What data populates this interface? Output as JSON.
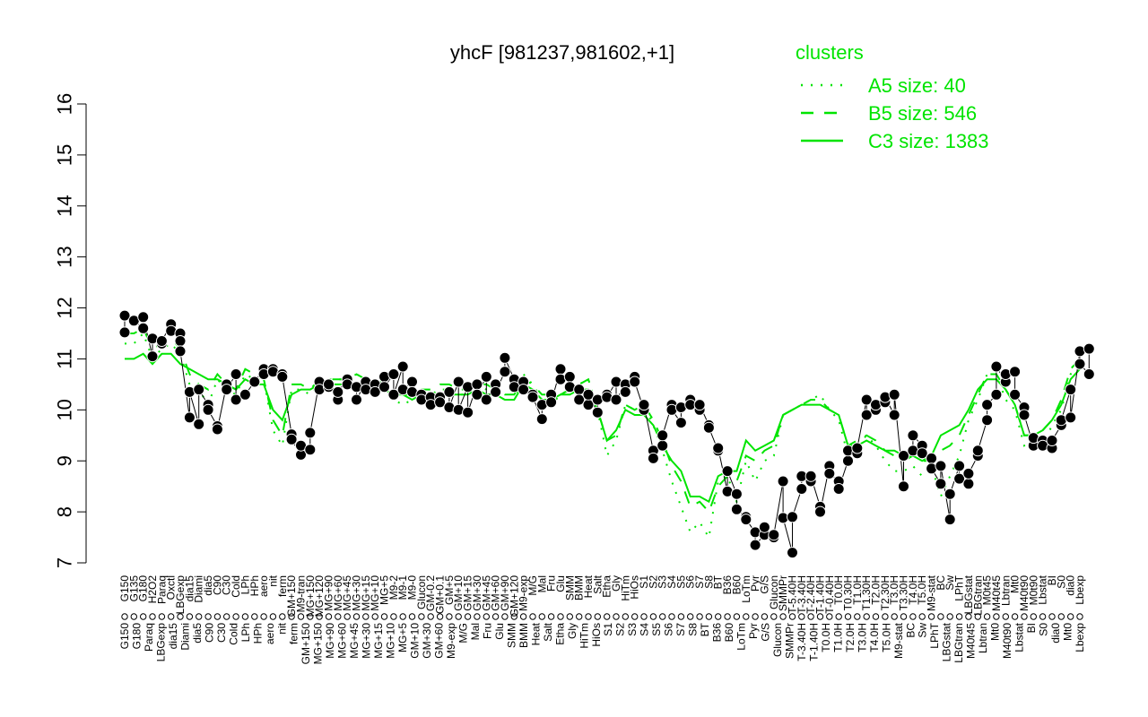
{
  "chart_data": {
    "type": "line",
    "title": "yhcF [981237,981602,+1]",
    "xlabel": "",
    "ylabel": "",
    "ylim": [
      7,
      16
    ],
    "yticks": [
      7,
      8,
      9,
      10,
      11,
      12,
      13,
      14,
      15,
      16
    ],
    "grid": false,
    "legend": {
      "placement": "top-right",
      "title": "clusters",
      "entries": [
        {
          "label": "A5 size: 40",
          "style": "dotted"
        },
        {
          "label": "B5 size: 546",
          "style": "dashed"
        },
        {
          "label": "C3 size: 1383",
          "style": "solid"
        }
      ]
    },
    "x_labels_top": [
      "G150",
      "G135",
      "G180",
      "H2O2",
      "Paraq",
      "Oxctl",
      "LBGexp",
      "dia15",
      "Diami",
      "dia5",
      "C90",
      "C30",
      "Cold",
      "LPh",
      "HPh",
      "aero",
      "nit",
      "ferm",
      "GM+150",
      "M9-tran",
      "MG+150",
      "MG+120",
      "MG+90",
      "MG+60",
      "MG+45",
      "MG+30",
      "MG+15",
      "MG+10",
      "MG+5",
      "M9-2",
      "M9-1",
      "M9-0",
      "Glucon",
      "GM-0.2",
      "GM+0.1",
      "GM+5",
      "GM+10",
      "GM+15",
      "GM+30",
      "GM+45",
      "GM+60",
      "GM+90",
      "GM+120",
      "M9-exp",
      "M/G",
      "Mal",
      "Fru",
      "Glu",
      "SMM",
      "BMM",
      "Heat",
      "Salt",
      "Etha",
      "Gly",
      "HiTm",
      "HiOs",
      "S1",
      "S2",
      "S3",
      "S4",
      "S5",
      "S6",
      "S7",
      "S8",
      "BT",
      "B36",
      "B60",
      "LoTm",
      "Pyr",
      "G/S",
      "Glucon",
      "SMMPr",
      "T-5.40H",
      "T-3.40H",
      "T-2.40H",
      "T-1.40H",
      "T-0.40H",
      "T0.0H",
      "T0.30H",
      "T1.0H",
      "T1.30H",
      "T2.0H",
      "T2.30H",
      "T3.0H",
      "T3.30H",
      "T4.0H",
      "T5.0H",
      "M9-stat",
      "BC",
      "Sw",
      "LPhT",
      "LBGstat",
      "LBGtran",
      "M0t45",
      "M40t45",
      "Lbtran",
      "Mt0",
      "M40t90",
      "M0t90",
      "Lbstat",
      "BI",
      "S0",
      "dia0",
      "Lbexp"
    ],
    "x_labels_bottom": [
      "G150",
      "G180",
      "Paraq",
      "LBGexp",
      "dia15",
      "Diami",
      "dia5",
      "C90",
      "C30",
      "Cold",
      "LPh",
      "HPh",
      "aero",
      "nit",
      "ferm",
      "GM+150",
      "MG+150",
      "MG+90",
      "MG+60",
      "MG+45",
      "MG+30",
      "MG+15",
      "MG+10",
      "MG+5",
      "GM+10",
      "GM+30",
      "GM+60",
      "M9-exp",
      "M/G",
      "Mal",
      "Fru",
      "Glu",
      "SMM",
      "BMM",
      "Heat",
      "Salt",
      "Etha",
      "Gly",
      "HiTm",
      "HiOs",
      "S1",
      "S2",
      "S3",
      "S4",
      "S5",
      "S6",
      "S7",
      "S8",
      "BT",
      "B36",
      "B60",
      "LoTm",
      "Pyr",
      "G/S",
      "Glucon",
      "SMMPr",
      "T-3.40H",
      "T-1.40H",
      "T0.0H",
      "T1.0H",
      "T2.0H",
      "T3.0H",
      "T4.0H",
      "T5.0H",
      "M9-stat",
      "BC",
      "Sw",
      "LPhT",
      "LBGstat",
      "LBGtran",
      "M40t45",
      "Lbtran",
      "Mt0",
      "M40t90",
      "Lbstat",
      "BI",
      "S0",
      "dia0",
      "Mt0",
      "Lbexp"
    ],
    "series": [
      {
        "name": "A5 size: 40",
        "style": "dotted",
        "color": "#00e400",
        "values": [
          11.3,
          11.3,
          11.5,
          11.0,
          11.2,
          11.3,
          11.1,
          10.5,
          10.4,
          10.1,
          10.6,
          10.4,
          10.3,
          10.7,
          10.6,
          10.6,
          9.6,
          9.3,
          10.4,
          10.4,
          10.3,
          10.5,
          10.6,
          10.6,
          10.6,
          10.7,
          10.6,
          10.5,
          10.4,
          10.2,
          10.1,
          10.2,
          10.3,
          10.3,
          10.4,
          10.4,
          10.3,
          10.3,
          10.5,
          10.4,
          10.3,
          10.2,
          10.2,
          10.7,
          10.5,
          10.2,
          10.1,
          10.3,
          10.4,
          10.5,
          10.6,
          10.0,
          9.1,
          9.4,
          10.1,
          10.0,
          10.1,
          9.7,
          9.2,
          8.6,
          8.1,
          7.6,
          7.8,
          7.5,
          8.6,
          8.7,
          8.2,
          9.0,
          8.6,
          9.0,
          9.1,
          9.9,
          10.0,
          10.1,
          10.2,
          10.3,
          10.0,
          9.8,
          9.1,
          9.3,
          9.5,
          9.3,
          9.0,
          8.8,
          8.8,
          8.9,
          8.7,
          8.9,
          8.3,
          8.7,
          9.1,
          9.8,
          10.2,
          10.7,
          10.7,
          10.2,
          10.0,
          9.3,
          9.4,
          9.3,
          9.7,
          10.0,
          10.7,
          10.9
        ]
      },
      {
        "name": "B5 size: 546",
        "style": "dashed",
        "color": "#00e400",
        "values": [
          11.5,
          11.5,
          11.6,
          11.2,
          11.3,
          11.4,
          11.2,
          10.7,
          10.5,
          10.4,
          10.7,
          10.5,
          10.4,
          10.8,
          10.7,
          10.6,
          9.8,
          9.5,
          10.5,
          10.5,
          10.4,
          10.6,
          10.6,
          10.6,
          10.6,
          10.7,
          10.6,
          10.6,
          10.5,
          10.4,
          10.3,
          10.3,
          10.4,
          10.4,
          10.5,
          10.5,
          10.4,
          10.4,
          10.5,
          10.5,
          10.4,
          10.3,
          10.3,
          10.6,
          10.5,
          10.3,
          10.3,
          10.3,
          10.4,
          10.5,
          10.6,
          10.0,
          9.4,
          9.5,
          10.1,
          10.0,
          10.1,
          9.8,
          9.4,
          8.9,
          8.6,
          8.1,
          8.2,
          8.0,
          8.5,
          8.7,
          8.6,
          9.1,
          9.0,
          9.2,
          9.3,
          9.9,
          10.0,
          10.1,
          10.2,
          10.2,
          10.0,
          9.9,
          9.3,
          9.4,
          9.5,
          9.4,
          9.2,
          9.1,
          9.0,
          9.1,
          9.0,
          9.0,
          9.2,
          9.3,
          9.5,
          9.9,
          10.3,
          10.7,
          10.7,
          10.4,
          10.1,
          9.5,
          9.5,
          9.6,
          9.8,
          10.2,
          10.8,
          11.0
        ]
      },
      {
        "name": "C3 size: 1383",
        "style": "solid",
        "color": "#00e400",
        "values": [
          11.0,
          11.0,
          11.1,
          10.9,
          11.1,
          11.1,
          10.9,
          10.8,
          10.7,
          10.6,
          10.6,
          10.5,
          10.4,
          10.6,
          10.5,
          10.5,
          10.0,
          9.8,
          10.3,
          10.4,
          10.4,
          10.5,
          10.5,
          10.5,
          10.5,
          10.5,
          10.5,
          10.4,
          10.4,
          10.3,
          10.3,
          10.2,
          10.3,
          10.3,
          10.3,
          10.3,
          10.3,
          10.3,
          10.4,
          10.3,
          10.3,
          10.2,
          10.2,
          10.5,
          10.4,
          10.2,
          10.2,
          10.3,
          10.3,
          10.4,
          10.4,
          10.0,
          9.4,
          9.6,
          10.0,
          9.9,
          9.9,
          9.7,
          9.3,
          9.0,
          8.8,
          8.3,
          8.3,
          8.2,
          8.7,
          8.8,
          8.8,
          9.4,
          9.2,
          9.3,
          9.4,
          9.9,
          10.0,
          10.1,
          10.1,
          10.1,
          10.0,
          9.9,
          9.3,
          9.3,
          9.4,
          9.3,
          9.2,
          9.2,
          9.1,
          9.1,
          9.0,
          9.1,
          9.5,
          9.6,
          9.7,
          10.0,
          10.4,
          10.6,
          10.6,
          10.4,
          10.1,
          9.5,
          9.5,
          9.6,
          9.8,
          10.1,
          10.6,
          10.8
        ]
      }
    ],
    "points": [
      [
        0,
        11.52
      ],
      [
        0,
        11.85
      ],
      [
        1,
        11.75
      ],
      [
        2,
        11.6
      ],
      [
        2,
        11.82
      ],
      [
        3,
        11.05
      ],
      [
        3,
        11.4
      ],
      [
        4,
        11.3
      ],
      [
        4,
        11.35
      ],
      [
        5,
        11.68
      ],
      [
        5,
        11.55
      ],
      [
        6,
        11.5
      ],
      [
        6,
        11.35
      ],
      [
        6,
        11.15
      ],
      [
        7,
        9.85
      ],
      [
        7,
        10.35
      ],
      [
        8,
        9.72
      ],
      [
        8,
        10.4
      ],
      [
        9,
        10.1
      ],
      [
        9,
        10.0
      ],
      [
        10,
        9.68
      ],
      [
        10,
        9.62
      ],
      [
        11,
        10.5
      ],
      [
        11,
        10.4
      ],
      [
        12,
        10.7
      ],
      [
        12,
        10.2
      ],
      [
        13,
        10.3
      ],
      [
        14,
        10.55
      ],
      [
        15,
        10.8
      ],
      [
        15,
        10.7
      ],
      [
        16,
        10.8
      ],
      [
        16,
        10.75
      ],
      [
        17,
        10.7
      ],
      [
        17,
        10.65
      ],
      [
        18,
        9.52
      ],
      [
        18,
        9.42
      ],
      [
        19,
        9.12
      ],
      [
        19,
        9.3
      ],
      [
        20,
        9.22
      ],
      [
        20,
        9.55
      ],
      [
        21,
        10.55
      ],
      [
        21,
        10.4
      ],
      [
        22,
        10.45
      ],
      [
        22,
        10.5
      ],
      [
        23,
        10.2
      ],
      [
        23,
        10.35
      ],
      [
        24,
        10.6
      ],
      [
        24,
        10.5
      ],
      [
        25,
        10.45
      ],
      [
        25,
        10.2
      ],
      [
        26,
        10.55
      ],
      [
        26,
        10.4
      ],
      [
        27,
        10.5
      ],
      [
        27,
        10.35
      ],
      [
        28,
        10.65
      ],
      [
        28,
        10.45
      ],
      [
        29,
        10.7
      ],
      [
        29,
        10.3
      ],
      [
        30,
        10.85
      ],
      [
        30,
        10.4
      ],
      [
        31,
        10.55
      ],
      [
        31,
        10.35
      ],
      [
        32,
        10.3
      ],
      [
        32,
        10.2
      ],
      [
        33,
        10.25
      ],
      [
        33,
        10.1
      ],
      [
        34,
        10.25
      ],
      [
        34,
        10.15
      ],
      [
        35,
        10.35
      ],
      [
        35,
        10.05
      ],
      [
        36,
        10.55
      ],
      [
        36,
        10.0
      ],
      [
        37,
        10.45
      ],
      [
        37,
        9.95
      ],
      [
        38,
        10.5
      ],
      [
        38,
        10.3
      ],
      [
        39,
        10.65
      ],
      [
        39,
        10.2
      ],
      [
        40,
        10.5
      ],
      [
        40,
        10.35
      ],
      [
        41,
        10.75
      ],
      [
        41,
        11.02
      ],
      [
        42,
        10.6
      ],
      [
        42,
        10.45
      ],
      [
        43,
        10.55
      ],
      [
        43,
        10.4
      ],
      [
        44,
        10.3
      ],
      [
        44,
        10.25
      ],
      [
        45,
        9.82
      ],
      [
        45,
        10.1
      ],
      [
        46,
        10.3
      ],
      [
        46,
        10.15
      ],
      [
        47,
        10.8
      ],
      [
        47,
        10.6
      ],
      [
        48,
        10.65
      ],
      [
        48,
        10.45
      ],
      [
        49,
        10.4
      ],
      [
        49,
        10.2
      ],
      [
        50,
        10.1
      ],
      [
        50,
        10.3
      ],
      [
        51,
        9.95
      ],
      [
        51,
        10.2
      ],
      [
        52,
        10.3
      ],
      [
        52,
        10.25
      ],
      [
        53,
        10.55
      ],
      [
        53,
        10.2
      ],
      [
        54,
        10.5
      ],
      [
        54,
        10.35
      ],
      [
        55,
        10.65
      ],
      [
        55,
        10.55
      ],
      [
        56,
        10.0
      ],
      [
        56,
        10.1
      ],
      [
        57,
        9.2
      ],
      [
        57,
        9.05
      ],
      [
        58,
        9.3
      ],
      [
        58,
        9.5
      ],
      [
        59,
        10.1
      ],
      [
        59,
        10.0
      ],
      [
        60,
        9.75
      ],
      [
        60,
        10.05
      ],
      [
        61,
        10.2
      ],
      [
        61,
        10.1
      ],
      [
        62,
        10.0
      ],
      [
        62,
        10.1
      ],
      [
        63,
        9.7
      ],
      [
        63,
        9.65
      ],
      [
        64,
        9.2
      ],
      [
        64,
        9.25
      ],
      [
        65,
        8.4
      ],
      [
        65,
        8.8
      ],
      [
        66,
        8.35
      ],
      [
        66,
        8.05
      ],
      [
        67,
        7.9
      ],
      [
        67,
        7.85
      ],
      [
        68,
        7.6
      ],
      [
        68,
        7.35
      ],
      [
        69,
        7.55
      ],
      [
        69,
        7.7
      ],
      [
        70,
        7.5
      ],
      [
        70,
        7.55
      ],
      [
        71,
        8.6
      ],
      [
        71,
        7.88
      ],
      [
        72,
        7.2
      ],
      [
        72,
        7.9
      ],
      [
        73,
        8.45
      ],
      [
        73,
        8.7
      ],
      [
        74,
        8.6
      ],
      [
        74,
        8.7
      ],
      [
        75,
        8.1
      ],
      [
        75,
        8.0
      ],
      [
        76,
        8.9
      ],
      [
        76,
        8.75
      ],
      [
        77,
        8.6
      ],
      [
        77,
        8.45
      ],
      [
        78,
        9.0
      ],
      [
        78,
        9.2
      ],
      [
        79,
        9.15
      ],
      [
        79,
        9.25
      ],
      [
        80,
        10.2
      ],
      [
        80,
        9.9
      ],
      [
        81,
        10.0
      ],
      [
        81,
        10.1
      ],
      [
        82,
        10.15
      ],
      [
        82,
        10.25
      ],
      [
        83,
        9.9
      ],
      [
        83,
        10.3
      ],
      [
        84,
        8.5
      ],
      [
        84,
        9.1
      ],
      [
        85,
        9.2
      ],
      [
        85,
        9.5
      ],
      [
        86,
        9.3
      ],
      [
        86,
        9.15
      ],
      [
        87,
        9.05
      ],
      [
        87,
        8.85
      ],
      [
        88,
        8.55
      ],
      [
        88,
        8.9
      ],
      [
        89,
        7.85
      ],
      [
        89,
        8.35
      ],
      [
        90,
        8.9
      ],
      [
        90,
        8.65
      ],
      [
        91,
        8.55
      ],
      [
        91,
        8.75
      ],
      [
        92,
        9.1
      ],
      [
        92,
        9.2
      ],
      [
        93,
        9.8
      ],
      [
        93,
        10.1
      ],
      [
        94,
        10.3
      ],
      [
        94,
        10.85
      ],
      [
        95,
        10.55
      ],
      [
        95,
        10.7
      ],
      [
        96,
        10.75
      ],
      [
        96,
        10.3
      ],
      [
        97,
        10.05
      ],
      [
        97,
        9.9
      ],
      [
        98,
        9.3
      ],
      [
        98,
        9.45
      ],
      [
        99,
        9.4
      ],
      [
        99,
        9.3
      ],
      [
        100,
        9.25
      ],
      [
        100,
        9.4
      ],
      [
        101,
        9.7
      ],
      [
        101,
        9.8
      ],
      [
        102,
        10.4
      ],
      [
        102,
        9.85
      ],
      [
        103,
        11.15
      ],
      [
        103,
        10.9
      ],
      [
        104,
        10.7
      ],
      [
        104,
        11.2
      ]
    ]
  }
}
